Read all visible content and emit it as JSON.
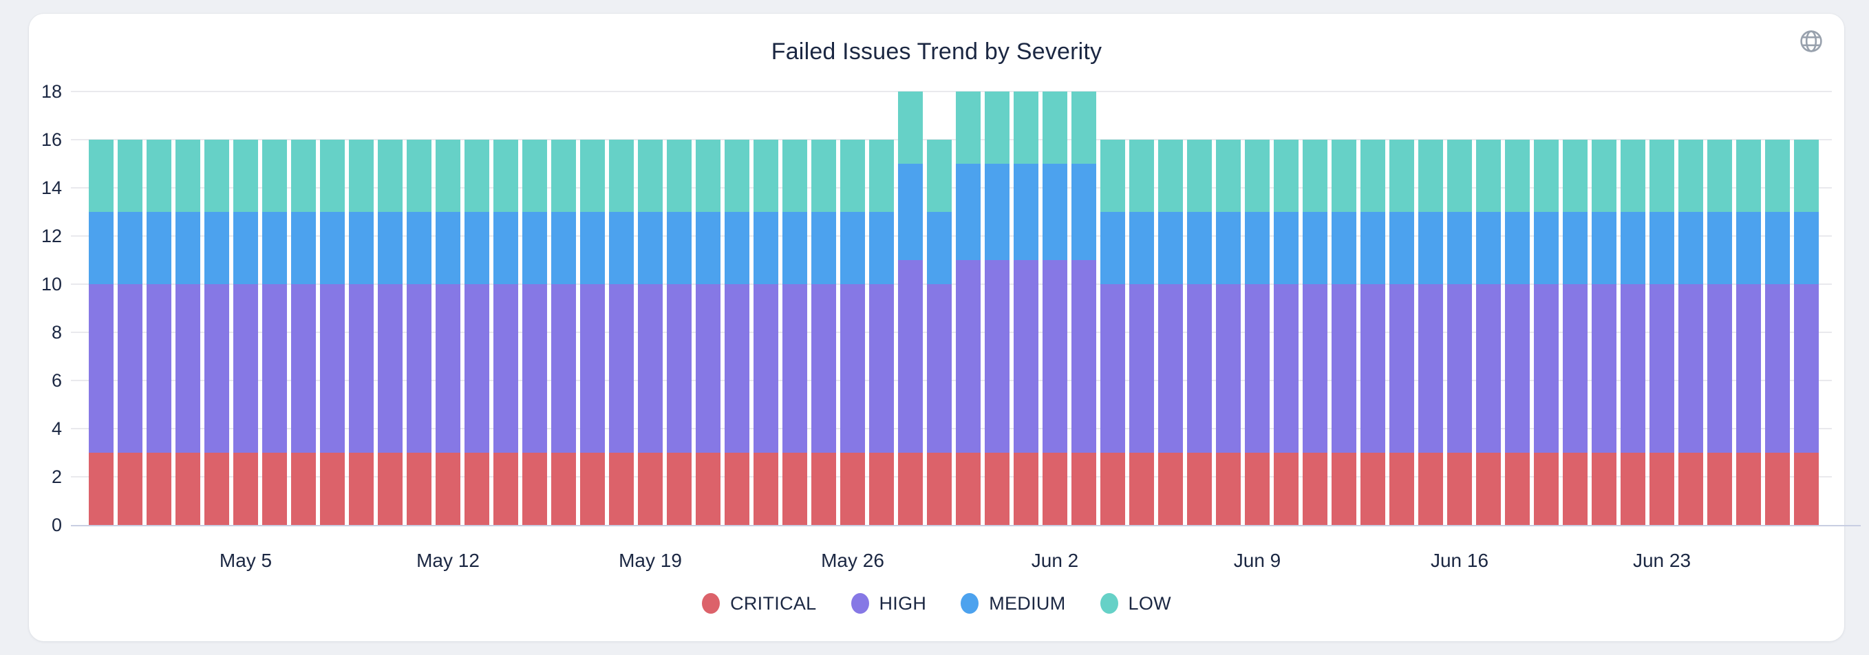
{
  "card": {
    "globe_icon": "globe-icon"
  },
  "chart_data": {
    "type": "bar",
    "stacked": true,
    "title": "Failed Issues Trend by Severity",
    "categories": [
      "Apr 30",
      "May 1",
      "May 2",
      "May 3",
      "May 4",
      "May 5",
      "May 6",
      "May 7",
      "May 8",
      "May 9",
      "May 10",
      "May 11",
      "May 12",
      "May 13",
      "May 14",
      "May 15",
      "May 16",
      "May 17",
      "May 18",
      "May 19",
      "May 20",
      "May 21",
      "May 22",
      "May 23",
      "May 24",
      "May 25",
      "May 26",
      "May 27",
      "May 28",
      "May 29",
      "May 30",
      "May 31",
      "Jun 1",
      "Jun 2",
      "Jun 3",
      "Jun 4",
      "Jun 5",
      "Jun 6",
      "Jun 7",
      "Jun 8",
      "Jun 9",
      "Jun 10",
      "Jun 11",
      "Jun 12",
      "Jun 13",
      "Jun 14",
      "Jun 15",
      "Jun 16",
      "Jun 17",
      "Jun 18",
      "Jun 19",
      "Jun 20",
      "Jun 21",
      "Jun 22",
      "Jun 23",
      "Jun 24",
      "Jun 25",
      "Jun 26",
      "Jun 27",
      "Jun 28"
    ],
    "series": [
      {
        "name": "CRITICAL",
        "color": "#dc626a",
        "values": [
          3,
          3,
          3,
          3,
          3,
          3,
          3,
          3,
          3,
          3,
          3,
          3,
          3,
          3,
          3,
          3,
          3,
          3,
          3,
          3,
          3,
          3,
          3,
          3,
          3,
          3,
          3,
          3,
          3,
          3,
          3,
          3,
          3,
          3,
          3,
          3,
          3,
          3,
          3,
          3,
          3,
          3,
          3,
          3,
          3,
          3,
          3,
          3,
          3,
          3,
          3,
          3,
          3,
          3,
          3,
          3,
          3,
          3,
          3,
          3
        ]
      },
      {
        "name": "HIGH",
        "color": "#8678e5",
        "values": [
          7,
          7,
          7,
          7,
          7,
          7,
          7,
          7,
          7,
          7,
          7,
          7,
          7,
          7,
          7,
          7,
          7,
          7,
          7,
          7,
          7,
          7,
          7,
          7,
          7,
          7,
          7,
          7,
          8,
          7,
          8,
          8,
          8,
          8,
          8,
          7,
          7,
          7,
          7,
          7,
          7,
          7,
          7,
          7,
          7,
          7,
          7,
          7,
          7,
          7,
          7,
          7,
          7,
          7,
          7,
          7,
          7,
          7,
          7,
          7
        ]
      },
      {
        "name": "MEDIUM",
        "color": "#4ca2ee",
        "values": [
          3,
          3,
          3,
          3,
          3,
          3,
          3,
          3,
          3,
          3,
          3,
          3,
          3,
          3,
          3,
          3,
          3,
          3,
          3,
          3,
          3,
          3,
          3,
          3,
          3,
          3,
          3,
          3,
          4,
          3,
          4,
          4,
          4,
          4,
          4,
          3,
          3,
          3,
          3,
          3,
          3,
          3,
          3,
          3,
          3,
          3,
          3,
          3,
          3,
          3,
          3,
          3,
          3,
          3,
          3,
          3,
          3,
          3,
          3,
          3
        ]
      },
      {
        "name": "LOW",
        "color": "#66d1c7",
        "values": [
          3,
          3,
          3,
          3,
          3,
          3,
          3,
          3,
          3,
          3,
          3,
          3,
          3,
          3,
          3,
          3,
          3,
          3,
          3,
          3,
          3,
          3,
          3,
          3,
          3,
          3,
          3,
          3,
          3,
          3,
          3,
          3,
          3,
          3,
          3,
          3,
          3,
          3,
          3,
          3,
          3,
          3,
          3,
          3,
          3,
          3,
          3,
          3,
          3,
          3,
          3,
          3,
          3,
          3,
          3,
          3,
          3,
          3,
          3,
          3
        ]
      }
    ],
    "x_ticks": [
      {
        "index": 5,
        "label": "May 5"
      },
      {
        "index": 12,
        "label": "May 12"
      },
      {
        "index": 19,
        "label": "May 19"
      },
      {
        "index": 26,
        "label": "May 26"
      },
      {
        "index": 33,
        "label": "Jun 2"
      },
      {
        "index": 40,
        "label": "Jun 9"
      },
      {
        "index": 47,
        "label": "Jun 16"
      },
      {
        "index": 54,
        "label": "Jun 23"
      },
      {
        "index": 59,
        "label": ""
      }
    ],
    "ylim": [
      0,
      18
    ],
    "y_ticks": [
      0,
      2,
      4,
      6,
      8,
      10,
      12,
      14,
      16,
      18
    ],
    "grid": true,
    "legend_position": "bottom",
    "legend_labels": [
      "CRITICAL",
      "HIGH",
      "MEDIUM",
      "LOW"
    ]
  },
  "colors": {
    "text": "#1b2742",
    "gridline": "#e9e9ed",
    "axis_line": "#c8cee2",
    "page_bg": "#eef0f4",
    "card_bg": "#ffffff",
    "icon_gray": "#98a1ad"
  }
}
